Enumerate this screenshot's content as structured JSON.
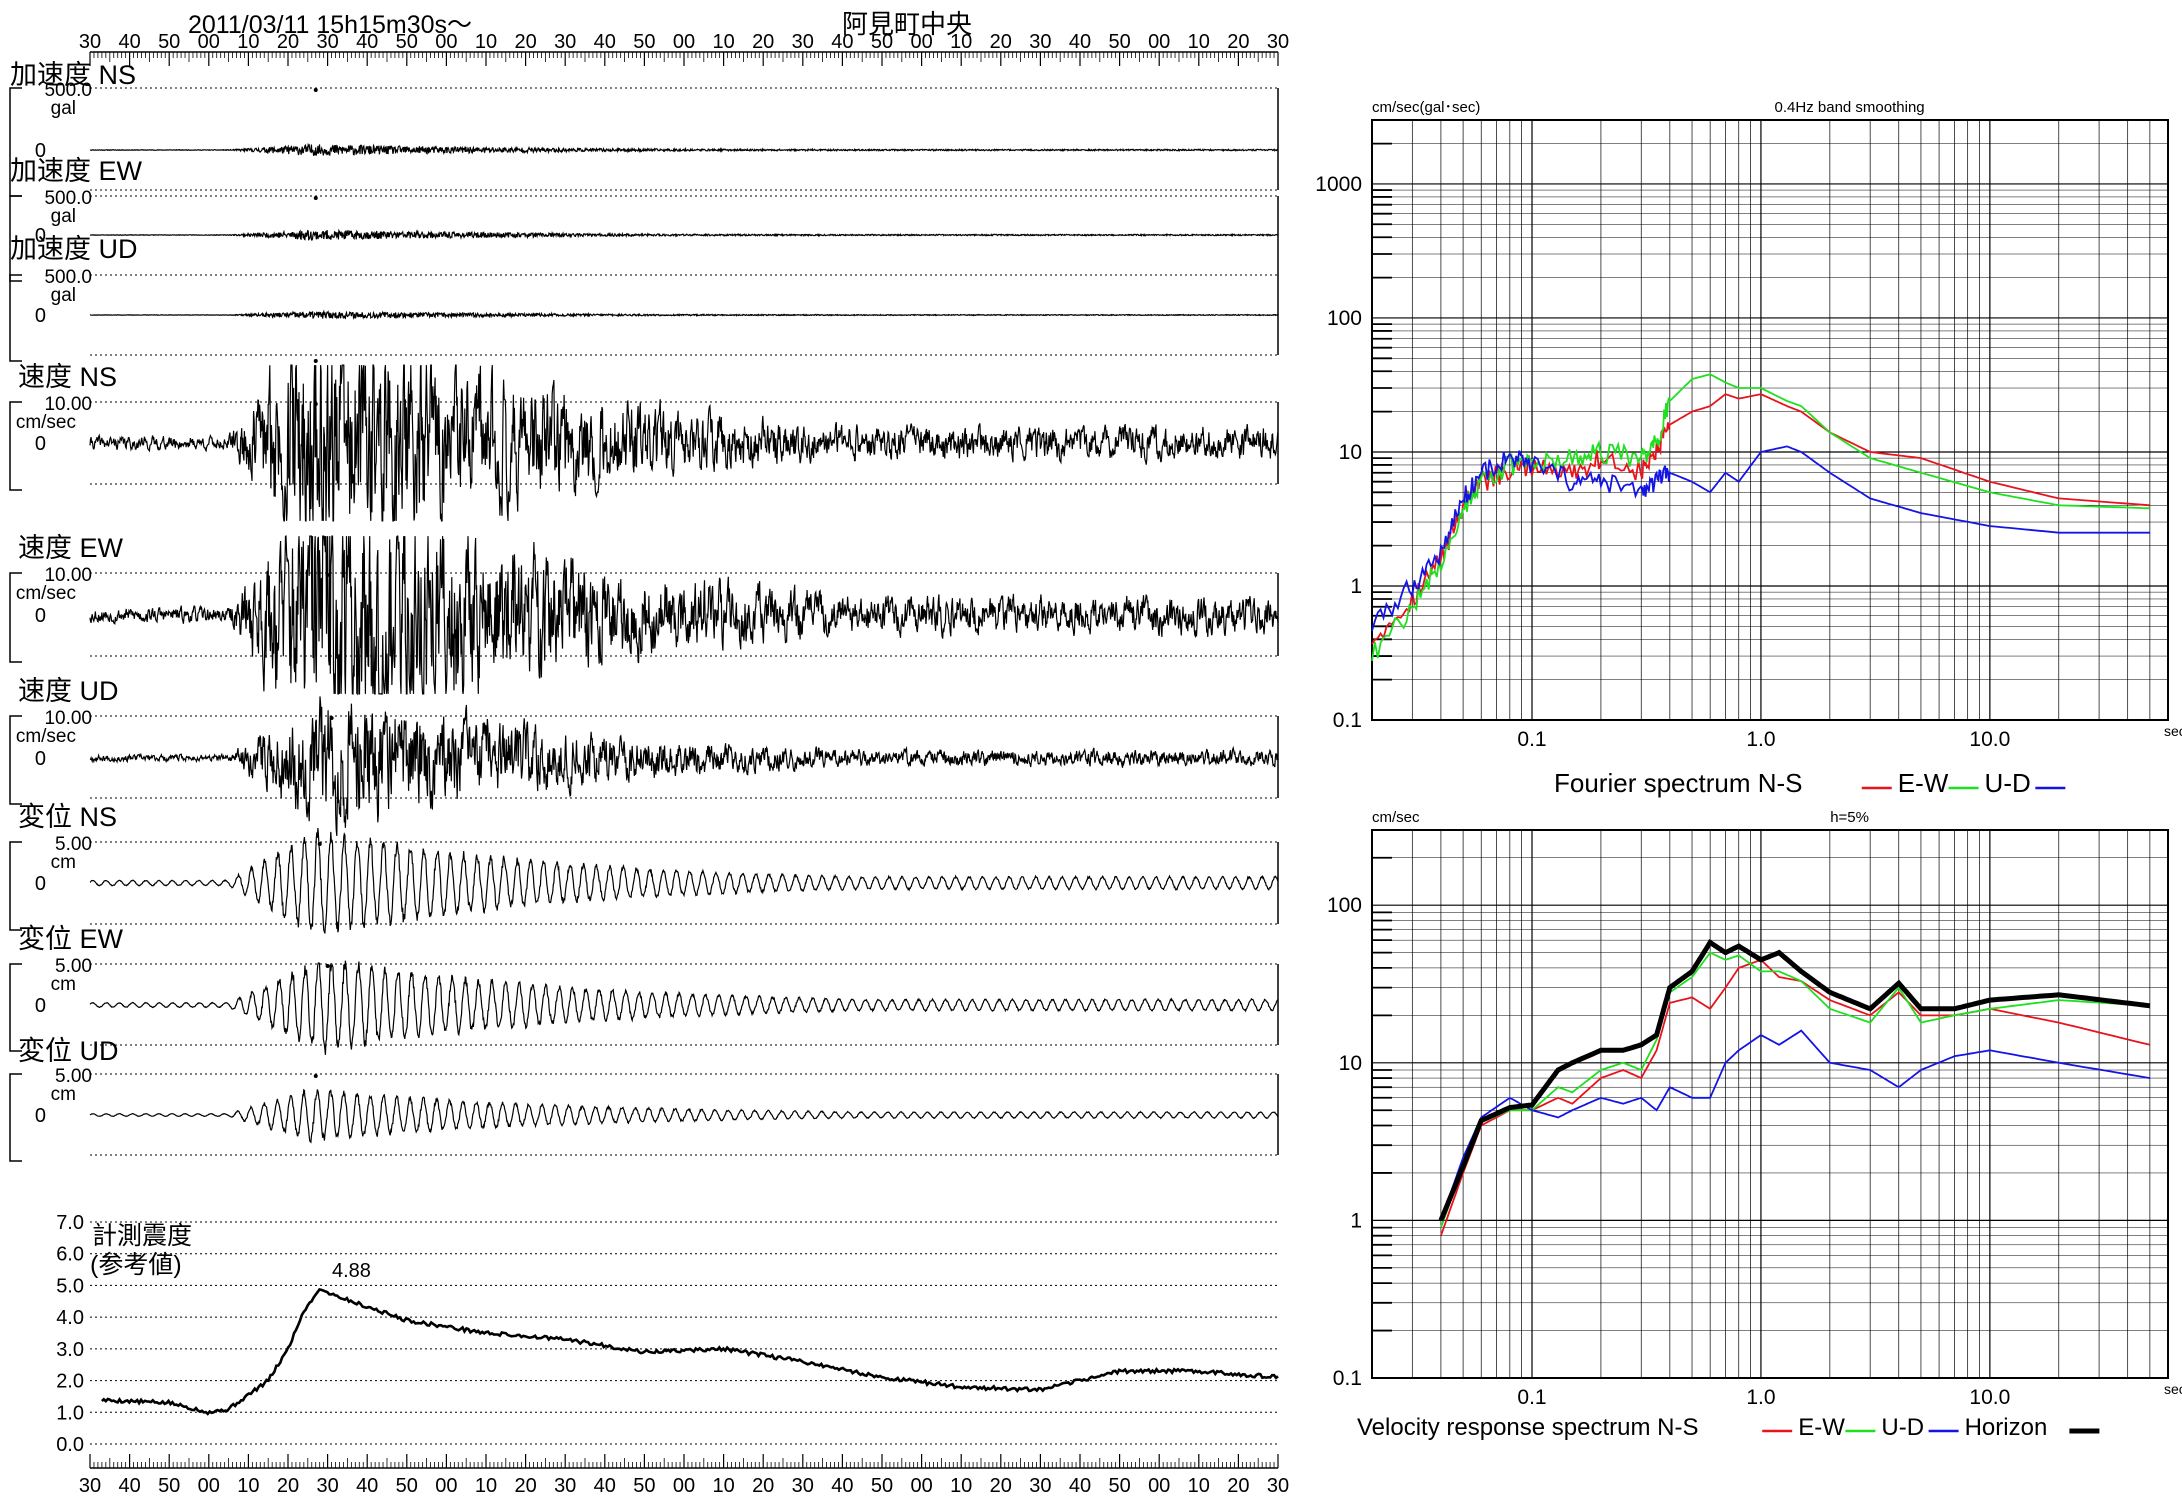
{
  "header": {
    "datetime": "2011/03/11  15h15m30s～",
    "station": "阿見町中央"
  },
  "time_axis_labels": [
    "30",
    "40",
    "50",
    "00",
    "10",
    "20",
    "30",
    "40",
    "50",
    "00",
    "10",
    "20",
    "30",
    "40",
    "50",
    "00",
    "10",
    "20",
    "30",
    "40",
    "50",
    "00",
    "10",
    "20",
    "30",
    "40",
    "50",
    "00",
    "10",
    "20",
    "30"
  ],
  "waveforms": [
    {
      "id": "acc-ns",
      "title": "加速度 NS",
      "scale": "500.0",
      "unit": "gal",
      "zero": "0",
      "kind": "acc",
      "seed": 11,
      "peak_t": 5.6,
      "amp": 0.06,
      "peak_mark": "above"
    },
    {
      "id": "acc-ew",
      "title": "加速度 EW",
      "scale": "500.0",
      "unit": "gal",
      "zero": "0",
      "kind": "acc",
      "seed": 23,
      "peak_t": 5.6,
      "amp": 0.07,
      "peak_mark": "above"
    },
    {
      "id": "acc-ud",
      "title": "加速度 UD",
      "scale": "500.0",
      "unit": "gal",
      "zero": "0",
      "kind": "acc",
      "seed": 37,
      "peak_t": 5.6,
      "amp": 0.05,
      "peak_mark": "below"
    },
    {
      "id": "vel-ns",
      "title": "速度 NS",
      "scale": "10.00",
      "unit": "cm/sec",
      "zero": "0",
      "kind": "vel",
      "seed": 41,
      "peak_t": 5.6,
      "amp": 0.55,
      "peak_mark": "above"
    },
    {
      "id": "vel-ew",
      "title": "速度 EW",
      "scale": "10.00",
      "unit": "cm/sec",
      "zero": "0",
      "kind": "vel",
      "seed": 53,
      "peak_t": 5.9,
      "amp": 0.62,
      "peak_mark": "above"
    },
    {
      "id": "vel-ud",
      "title": "速度 UD",
      "scale": "10.00",
      "unit": "cm/sec",
      "zero": "0",
      "kind": "vel",
      "seed": 67,
      "peak_t": 6.0,
      "amp": 0.28,
      "peak_mark": "above"
    },
    {
      "id": "dis-ns",
      "title": "変位 NS",
      "scale": "5.00",
      "unit": "cm",
      "zero": "0",
      "kind": "dis",
      "seed": 71,
      "peak_t": 5.7,
      "amp": 0.5,
      "peak_mark": "above"
    },
    {
      "id": "dis-ew",
      "title": "変位 EW",
      "scale": "5.00",
      "unit": "cm",
      "zero": "0",
      "kind": "dis",
      "seed": 83,
      "peak_t": 5.9,
      "amp": 0.45,
      "peak_mark": "above"
    },
    {
      "id": "dis-ud",
      "title": "変位 UD",
      "scale": "5.00",
      "unit": "cm",
      "zero": "0",
      "kind": "dis",
      "seed": 97,
      "peak_t": 5.6,
      "amp": 0.25,
      "peak_mark": "above"
    }
  ],
  "intensity": {
    "title_line1": "計測震度",
    "title_line2": "(参考値)",
    "peak_label": "4.88",
    "y_ticks": [
      "7.0",
      "6.0",
      "5.0",
      "4.0",
      "3.0",
      "2.0",
      "1.0",
      "0.0"
    ]
  },
  "chart_data": [
    {
      "type": "line",
      "title": "Fourier spectrum  N-S",
      "subtitle": "0.4Hz band smoothing",
      "ylabel": "cm/sec(gal･sec)",
      "xlabel": "sec",
      "xscale": "log",
      "yscale": "log",
      "xlim": [
        0.02,
        60
      ],
      "ylim": [
        0.1,
        3000
      ],
      "x_tick_labels": [
        "0.1",
        "1.0",
        "10.0"
      ],
      "y_tick_labels": [
        "1000",
        "100",
        "10",
        "1",
        "0.1"
      ],
      "legend": [
        {
          "label": "N-S",
          "color": "#e8141c"
        },
        {
          "label": "E-W",
          "color": "#1ee01e"
        },
        {
          "label": "U-D",
          "color": "#1414e6"
        }
      ],
      "series": [
        {
          "key": "N-S",
          "color": "#e8141c",
          "x": [
            0.02,
            0.03,
            0.04,
            0.05,
            0.06,
            0.08,
            0.1,
            0.15,
            0.2,
            0.3,
            0.35,
            0.4,
            0.5,
            0.6,
            0.7,
            0.8,
            1.0,
            1.3,
            1.5,
            2,
            3,
            5,
            10,
            20,
            50
          ],
          "y": [
            0.4,
            0.8,
            1.6,
            4,
            6,
            7,
            8,
            7,
            9,
            7,
            10,
            16,
            20,
            22,
            27,
            25,
            27,
            22,
            20,
            14,
            10,
            9,
            6,
            4.5,
            4
          ]
        },
        {
          "key": "E-W",
          "color": "#1ee01e",
          "x": [
            0.02,
            0.03,
            0.04,
            0.05,
            0.06,
            0.08,
            0.1,
            0.15,
            0.2,
            0.3,
            0.35,
            0.4,
            0.5,
            0.6,
            0.7,
            0.8,
            1.0,
            1.3,
            1.5,
            2,
            3,
            5,
            10,
            20,
            50
          ],
          "y": [
            0.3,
            0.7,
            1.5,
            3.8,
            6,
            8,
            8,
            9,
            10,
            9,
            12,
            24,
            35,
            38,
            33,
            30,
            30,
            24,
            22,
            14,
            9,
            7,
            5,
            4,
            3.8
          ]
        },
        {
          "key": "U-D",
          "color": "#1414e6",
          "x": [
            0.02,
            0.03,
            0.04,
            0.05,
            0.06,
            0.08,
            0.1,
            0.15,
            0.2,
            0.3,
            0.35,
            0.4,
            0.5,
            0.6,
            0.7,
            0.8,
            1.0,
            1.3,
            1.5,
            2,
            3,
            5,
            10,
            20,
            50
          ],
          "y": [
            0.5,
            1,
            1.8,
            4.5,
            7,
            9,
            8,
            6,
            6,
            5,
            6,
            7,
            6,
            5,
            7,
            6,
            10,
            11,
            10,
            7,
            4.5,
            3.5,
            2.8,
            2.5,
            2.5
          ]
        }
      ]
    },
    {
      "type": "line",
      "title": "Velocity response spectrum N-S",
      "subtitle": "h=5%",
      "ylabel": "cm/sec",
      "xlabel": "sec",
      "xscale": "log",
      "yscale": "log",
      "xlim": [
        0.02,
        60
      ],
      "ylim": [
        0.1,
        300
      ],
      "x_tick_labels": [
        "0.1",
        "1.0",
        "10.0"
      ],
      "y_tick_labels": [
        "100",
        "10",
        "1",
        "0.1"
      ],
      "legend": [
        {
          "label": "N-S",
          "color": "#e8141c"
        },
        {
          "label": "E-W",
          "color": "#1ee01e"
        },
        {
          "label": "U-D",
          "color": "#1414e6"
        },
        {
          "label": "Horizon",
          "color": "#000000"
        }
      ],
      "series": [
        {
          "key": "N-S",
          "color": "#e8141c",
          "x": [
            0.04,
            0.05,
            0.06,
            0.08,
            0.1,
            0.13,
            0.15,
            0.2,
            0.25,
            0.3,
            0.35,
            0.4,
            0.5,
            0.6,
            0.7,
            0.8,
            1.0,
            1.2,
            1.5,
            2,
            3,
            4,
            5,
            7,
            10,
            20,
            50
          ],
          "y": [
            0.8,
            2,
            4,
            5,
            5,
            6,
            5.5,
            8,
            9,
            8,
            12,
            24,
            26,
            22,
            30,
            40,
            45,
            35,
            33,
            25,
            20,
            28,
            20,
            20,
            22,
            18,
            13
          ]
        },
        {
          "key": "E-W",
          "color": "#1ee01e",
          "x": [
            0.04,
            0.05,
            0.06,
            0.08,
            0.1,
            0.13,
            0.15,
            0.2,
            0.25,
            0.3,
            0.35,
            0.4,
            0.5,
            0.6,
            0.7,
            0.8,
            1.0,
            1.2,
            1.5,
            2,
            3,
            4,
            5,
            7,
            10,
            20,
            50
          ],
          "y": [
            0.9,
            2.2,
            4.2,
            5,
            5,
            7,
            6.5,
            9,
            10,
            9,
            14,
            28,
            35,
            50,
            45,
            48,
            38,
            38,
            33,
            22,
            18,
            30,
            18,
            20,
            22,
            25,
            23
          ]
        },
        {
          "key": "U-D",
          "color": "#1414e6",
          "x": [
            0.04,
            0.05,
            0.06,
            0.08,
            0.1,
            0.13,
            0.15,
            0.2,
            0.25,
            0.3,
            0.35,
            0.4,
            0.5,
            0.6,
            0.7,
            0.8,
            1.0,
            1.2,
            1.5,
            2,
            3,
            4,
            5,
            7,
            10,
            20,
            50
          ],
          "y": [
            1,
            2.5,
            4.5,
            6,
            5,
            4.5,
            5,
            6,
            5.5,
            6,
            5,
            7,
            6,
            6,
            10,
            12,
            15,
            13,
            16,
            10,
            9,
            7,
            9,
            11,
            12,
            10,
            8
          ]
        },
        {
          "key": "Horizon",
          "color": "#000000",
          "x": [
            0.04,
            0.05,
            0.06,
            0.08,
            0.1,
            0.13,
            0.15,
            0.2,
            0.25,
            0.3,
            0.35,
            0.4,
            0.5,
            0.6,
            0.7,
            0.8,
            1.0,
            1.2,
            1.5,
            2,
            3,
            4,
            5,
            7,
            10,
            20,
            50
          ],
          "y": [
            1,
            2.2,
            4.3,
            5.2,
            5.4,
            9,
            10,
            12,
            12,
            13,
            15,
            30,
            38,
            58,
            50,
            55,
            45,
            50,
            38,
            28,
            22,
            32,
            22,
            22,
            25,
            27,
            23
          ]
        }
      ]
    }
  ]
}
